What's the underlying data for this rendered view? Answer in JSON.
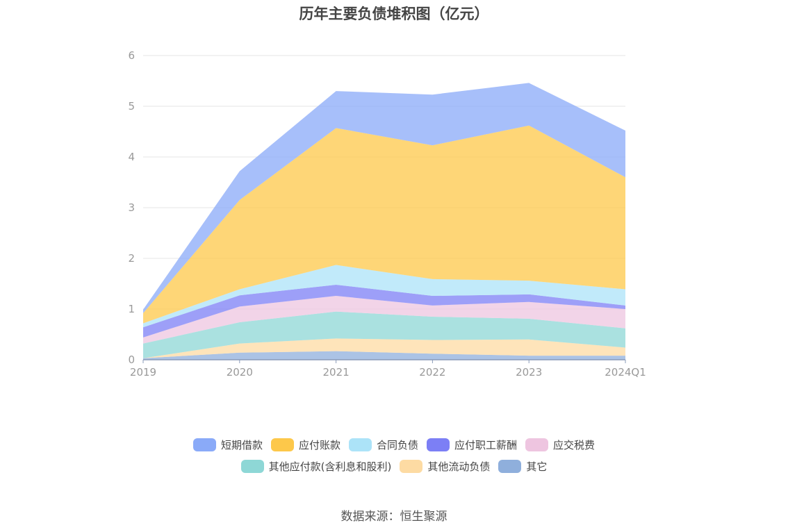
{
  "chart_data": {
    "type": "area",
    "stacked": true,
    "title": "历年主要负债堆积图（亿元）",
    "categories": [
      "2019",
      "2020",
      "2021",
      "2022",
      "2023",
      "2024Q1"
    ],
    "y_ticks": [
      "0",
      "1",
      "2",
      "3",
      "4",
      "5",
      "6"
    ],
    "ylim": [
      0,
      6
    ],
    "grid": true,
    "legend_position": "bottom",
    "series": [
      {
        "name": "其它",
        "color": "#8fafdc",
        "values": [
          0.03,
          0.14,
          0.17,
          0.12,
          0.08,
          0.08
        ]
      },
      {
        "name": "其他流动负债",
        "color": "#fddba3",
        "values": [
          0.0,
          0.18,
          0.25,
          0.27,
          0.32,
          0.16
        ]
      },
      {
        "name": "其他应付款(含利息和股利)",
        "color": "#8ed7d6",
        "values": [
          0.29,
          0.42,
          0.53,
          0.46,
          0.41,
          0.38
        ]
      },
      {
        "name": "应交税费",
        "color": "#eec5e0",
        "values": [
          0.12,
          0.31,
          0.31,
          0.22,
          0.33,
          0.38
        ]
      },
      {
        "name": "应付职工薪酬",
        "color": "#7c7ff5",
        "values": [
          0.2,
          0.22,
          0.22,
          0.19,
          0.15,
          0.07
        ]
      },
      {
        "name": "合同负债",
        "color": "#ace3f8",
        "values": [
          0.08,
          0.12,
          0.39,
          0.33,
          0.27,
          0.32
        ]
      },
      {
        "name": "应付账款",
        "color": "#fdc84a",
        "values": [
          0.2,
          1.76,
          2.7,
          2.64,
          3.06,
          2.21
        ]
      },
      {
        "name": "短期借款",
        "color": "#8aaaf8",
        "values": [
          0.07,
          0.57,
          0.73,
          1.0,
          0.84,
          0.92
        ]
      }
    ],
    "legend_rows": [
      [
        "短期借款",
        "应付账款",
        "合同负债",
        "应付职工薪酬",
        "应交税费"
      ],
      [
        "其他应付款(含利息和股利)",
        "其他流动负债",
        "其它"
      ]
    ]
  },
  "source": "数据来源：恒生聚源"
}
